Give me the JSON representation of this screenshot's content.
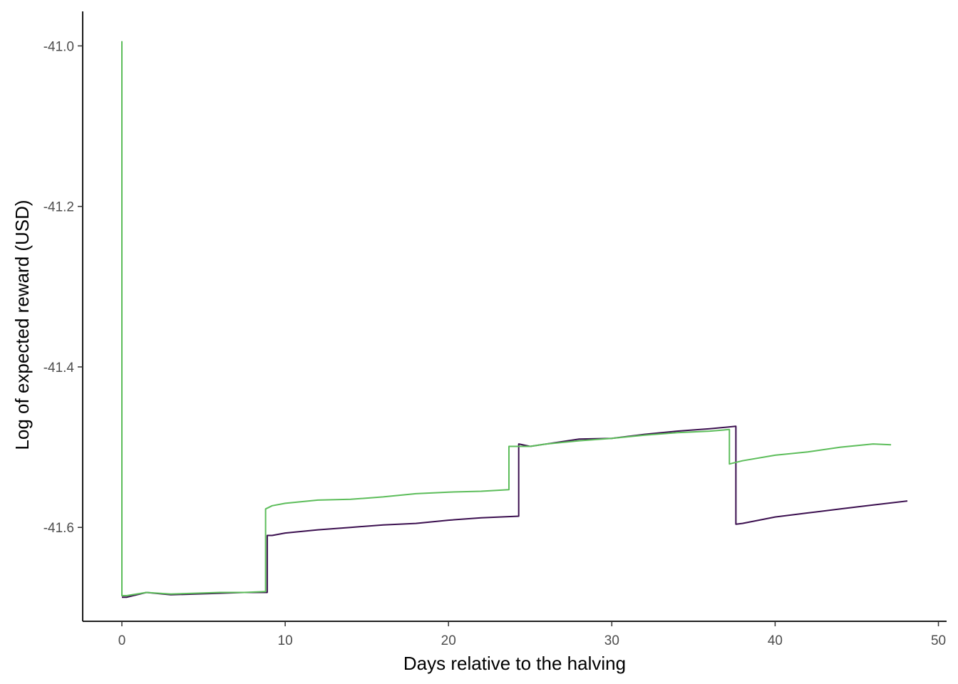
{
  "chart_data": {
    "type": "line",
    "title": "",
    "xlabel": "Days relative to the halving",
    "ylabel": "Log of expected reward (USD)",
    "xlim": [
      -2.4,
      50.5
    ],
    "ylim": [
      -41.717,
      -40.957
    ],
    "xticks": [
      0,
      10,
      20,
      30,
      40,
      50
    ],
    "xtick_labels": [
      "0",
      "10",
      "20",
      "30",
      "40",
      "50"
    ],
    "yticks": [
      -41.6,
      -41.4,
      -41.2,
      -41.0
    ],
    "ytick_labels": [
      "-41.6",
      "-41.4",
      "-41.2",
      "-41.0"
    ],
    "grid": false,
    "legend": "none",
    "series": [
      {
        "color": "#3b0f4f",
        "x": [
          0,
          0.3,
          1.5,
          3,
          4.5,
          6,
          7.5,
          8.9,
          8.9,
          9.2,
          10,
          12,
          14,
          16,
          18,
          20,
          22,
          24.3,
          24.3,
          25,
          26,
          28,
          30,
          32,
          34,
          36,
          37.6,
          37.6,
          38,
          40,
          42,
          44,
          46,
          48.1
        ],
        "y": [
          -41.687,
          -41.687,
          -41.681,
          -41.684,
          -41.683,
          -41.682,
          -41.681,
          -41.681,
          -41.61,
          -41.61,
          -41.607,
          -41.603,
          -41.6,
          -41.597,
          -41.595,
          -41.591,
          -41.588,
          -41.586,
          -41.496,
          -41.499,
          -41.496,
          -41.49,
          -41.489,
          -41.484,
          -41.48,
          -41.477,
          -41.474,
          -41.596,
          -41.595,
          -41.587,
          -41.582,
          -41.577,
          -41.572,
          -41.567
        ]
      },
      {
        "color": "#5cbd5a",
        "x": [
          0,
          0,
          0.3,
          1.5,
          3,
          4.5,
          6,
          7.5,
          8.8,
          8.8,
          9.2,
          10,
          12,
          14,
          16,
          18,
          20,
          22,
          23.7,
          23.7,
          25,
          26,
          28,
          30,
          32,
          34,
          36,
          37.2,
          37.2,
          38,
          40,
          42,
          44,
          46,
          47.1
        ],
        "y": [
          -40.994,
          -41.685,
          -41.685,
          -41.681,
          -41.683,
          -41.682,
          -41.681,
          -41.681,
          -41.68,
          -41.577,
          -41.573,
          -41.57,
          -41.566,
          -41.565,
          -41.562,
          -41.558,
          -41.556,
          -41.555,
          -41.553,
          -41.499,
          -41.499,
          -41.496,
          -41.492,
          -41.489,
          -41.485,
          -41.482,
          -41.48,
          -41.478,
          -41.521,
          -41.517,
          -41.51,
          -41.506,
          -41.5,
          -41.496,
          -41.497
        ]
      }
    ]
  }
}
